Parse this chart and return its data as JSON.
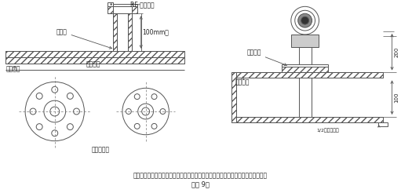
{
  "title": "插入式流量计短管制作、安装示意图，根据流量计算采用不同的法兰及短管公称直径",
  "subtitle": "（图 9）",
  "line_color": "#555555",
  "hatch_color": "#888888",
  "label_rf": "RF 配套法兰",
  "label_100mm": "100mm高",
  "label_weld_point": "焊接点",
  "label_process_pipe": "工艺管道",
  "label_weld_tube": "焊接短管",
  "label_center_line": "管道中心线",
  "label_match_tube": "配套短管",
  "label_pipe_wall": "管道外壁",
  "label_half_diameter": "1/2量量管外径",
  "dim_200": "200",
  "dim_100": "100"
}
